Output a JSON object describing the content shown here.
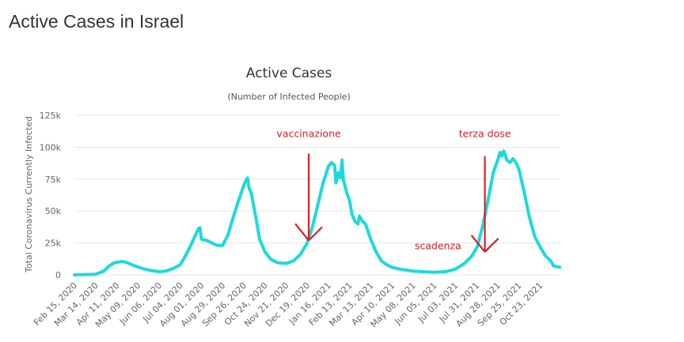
{
  "page": {
    "title": "Active Cases in Israel"
  },
  "colors": {
    "series_line": "#1fd9d9",
    "annotation": "#d42028",
    "axis_text": "#666666",
    "gridline": "#e6e6e6"
  },
  "chart_data": {
    "type": "line",
    "title": "Active Cases",
    "subtitle": "(Number of Infected People)",
    "xlabel": "",
    "ylabel": "Total Coronavirus Currently Infected",
    "grid": true,
    "legend": "none",
    "ylim": [
      0,
      125000
    ],
    "xlim": [
      "2020-02-15",
      "2021-11-18"
    ],
    "y_ticks": [
      {
        "value": 0,
        "label": "0"
      },
      {
        "value": 25000,
        "label": "25k"
      },
      {
        "value": 50000,
        "label": "50k"
      },
      {
        "value": 75000,
        "label": "75k"
      },
      {
        "value": 100000,
        "label": "100k"
      },
      {
        "value": 125000,
        "label": "125k"
      }
    ],
    "x_ticks": [
      {
        "date": "2020-02-15",
        "label": "Feb 15, 2020"
      },
      {
        "date": "2020-03-14",
        "label": "Mar 14, 2020"
      },
      {
        "date": "2020-04-11",
        "label": "Apr 11, 2020"
      },
      {
        "date": "2020-05-09",
        "label": "May 09, 2020"
      },
      {
        "date": "2020-06-06",
        "label": "Jun 06, 2020"
      },
      {
        "date": "2020-07-04",
        "label": "Jul 04, 2020"
      },
      {
        "date": "2020-08-01",
        "label": "Aug 01, 2020"
      },
      {
        "date": "2020-08-29",
        "label": "Aug 29, 2020"
      },
      {
        "date": "2020-09-26",
        "label": "Sep 26, 2020"
      },
      {
        "date": "2020-10-24",
        "label": "Oct 24, 2020"
      },
      {
        "date": "2020-11-21",
        "label": "Nov 21, 2020"
      },
      {
        "date": "2020-12-19",
        "label": "Dec 19, 2020"
      },
      {
        "date": "2021-01-16",
        "label": "Jan 16, 2021"
      },
      {
        "date": "2021-02-13",
        "label": "Feb 13, 2021"
      },
      {
        "date": "2021-03-13",
        "label": "Mar 13, 2021"
      },
      {
        "date": "2021-04-10",
        "label": "Apr 10, 2021"
      },
      {
        "date": "2021-05-08",
        "label": "May 08, 2021"
      },
      {
        "date": "2021-06-05",
        "label": "Jun 05, 2021"
      },
      {
        "date": "2021-07-03",
        "label": "Jul 03, 2021"
      },
      {
        "date": "2021-07-31",
        "label": "Jul 31, 2021"
      },
      {
        "date": "2021-08-28",
        "label": "Aug 28, 2021"
      },
      {
        "date": "2021-09-25",
        "label": "Sep 25, 2021"
      },
      {
        "date": "2021-10-23",
        "label": "Oct 23, 2021"
      }
    ],
    "series": [
      {
        "points": [
          [
            "2020-02-15",
            0
          ],
          [
            "2020-03-14",
            500
          ],
          [
            "2020-03-25",
            3000
          ],
          [
            "2020-04-01",
            7000
          ],
          [
            "2020-04-08",
            9500
          ],
          [
            "2020-04-18",
            10500
          ],
          [
            "2020-04-25",
            9500
          ],
          [
            "2020-05-05",
            7000
          ],
          [
            "2020-05-15",
            5000
          ],
          [
            "2020-05-25",
            3500
          ],
          [
            "2020-06-06",
            2500
          ],
          [
            "2020-06-15",
            3000
          ],
          [
            "2020-06-25",
            5000
          ],
          [
            "2020-07-04",
            8000
          ],
          [
            "2020-07-10",
            14000
          ],
          [
            "2020-07-17",
            22000
          ],
          [
            "2020-07-24",
            31000
          ],
          [
            "2020-07-28",
            36000
          ],
          [
            "2020-07-30",
            37000
          ],
          [
            "2020-08-01",
            28000
          ],
          [
            "2020-08-08",
            27000
          ],
          [
            "2020-08-15",
            25000
          ],
          [
            "2020-08-22",
            23000
          ],
          [
            "2020-08-29",
            23000
          ],
          [
            "2020-09-05",
            31000
          ],
          [
            "2020-09-12",
            45000
          ],
          [
            "2020-09-19",
            58000
          ],
          [
            "2020-09-26",
            70000
          ],
          [
            "2020-09-29",
            74000
          ],
          [
            "2020-10-01",
            76000
          ],
          [
            "2020-10-03",
            68000
          ],
          [
            "2020-10-06",
            64000
          ],
          [
            "2020-10-12",
            45000
          ],
          [
            "2020-10-17",
            28000
          ],
          [
            "2020-10-24",
            18000
          ],
          [
            "2020-11-01",
            12000
          ],
          [
            "2020-11-10",
            9500
          ],
          [
            "2020-11-21",
            9000
          ],
          [
            "2020-12-01",
            11000
          ],
          [
            "2020-12-10",
            16000
          ],
          [
            "2020-12-19",
            25000
          ],
          [
            "2020-12-26",
            38000
          ],
          [
            "2021-01-02",
            55000
          ],
          [
            "2021-01-09",
            72000
          ],
          [
            "2021-01-16",
            85000
          ],
          [
            "2021-01-20",
            88000
          ],
          [
            "2021-01-24",
            86000
          ],
          [
            "2021-01-26",
            72000
          ],
          [
            "2021-01-29",
            80000
          ],
          [
            "2021-02-01",
            76000
          ],
          [
            "2021-02-03",
            90000
          ],
          [
            "2021-02-05",
            74000
          ],
          [
            "2021-02-09",
            65000
          ],
          [
            "2021-02-13",
            58000
          ],
          [
            "2021-02-16",
            48000
          ],
          [
            "2021-02-20",
            42000
          ],
          [
            "2021-02-24",
            40000
          ],
          [
            "2021-02-26",
            46000
          ],
          [
            "2021-03-02",
            42000
          ],
          [
            "2021-03-06",
            40000
          ],
          [
            "2021-03-13",
            28000
          ],
          [
            "2021-03-20",
            18000
          ],
          [
            "2021-03-27",
            11000
          ],
          [
            "2021-04-03",
            8000
          ],
          [
            "2021-04-10",
            6000
          ],
          [
            "2021-04-20",
            4500
          ],
          [
            "2021-05-08",
            3000
          ],
          [
            "2021-06-05",
            2000
          ],
          [
            "2021-06-20",
            2500
          ],
          [
            "2021-07-03",
            4500
          ],
          [
            "2021-07-15",
            9000
          ],
          [
            "2021-07-25",
            15000
          ],
          [
            "2021-08-01",
            22000
          ],
          [
            "2021-08-08",
            38000
          ],
          [
            "2021-08-15",
            58000
          ],
          [
            "2021-08-22",
            80000
          ],
          [
            "2021-08-28",
            90000
          ],
          [
            "2021-08-31",
            96000
          ],
          [
            "2021-09-02",
            93000
          ],
          [
            "2021-09-05",
            97000
          ],
          [
            "2021-09-09",
            90000
          ],
          [
            "2021-09-13",
            88000
          ],
          [
            "2021-09-17",
            91000
          ],
          [
            "2021-09-21",
            88000
          ],
          [
            "2021-09-25",
            83000
          ],
          [
            "2021-10-02",
            65000
          ],
          [
            "2021-10-09",
            45000
          ],
          [
            "2021-10-16",
            30000
          ],
          [
            "2021-10-23",
            22000
          ],
          [
            "2021-10-30",
            15000
          ],
          [
            "2021-11-06",
            11000
          ],
          [
            "2021-11-10",
            7000
          ],
          [
            "2021-11-18",
            6000
          ]
        ]
      }
    ],
    "annotations": [
      {
        "text": "vaccinazione",
        "date": "2020-12-21",
        "value": 108000,
        "arrow_from": 95000,
        "arrow_to": 27000
      },
      {
        "text": "terza dose",
        "date": "2021-08-11",
        "value": 108000,
        "arrow_from": 93000,
        "arrow_to": 18000
      },
      {
        "text": "scadenza",
        "date": "2021-06-10",
        "value": 20000
      }
    ]
  }
}
